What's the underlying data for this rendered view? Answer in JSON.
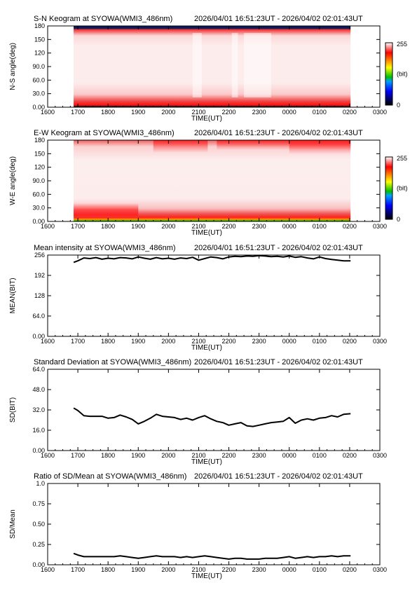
{
  "chart_data": [
    {
      "type": "heatmap",
      "title": "S-N Keogram at SYOWA(WMI3_486nm)",
      "time_range": "2026/04/01 16:51:23UT - 2026/04/02 02:01:43UT",
      "xlabel": "TIME(UT)",
      "ylabel": "N-S angle(deg)",
      "x_ticks": [
        "1600",
        "1700",
        "1800",
        "1900",
        "2000",
        "2100",
        "2200",
        "2300",
        "0000",
        "0100",
        "0200",
        "0300"
      ],
      "y_ticks": [
        "0.00",
        "30.0",
        "60.0",
        "90.0",
        "120",
        "150",
        "180"
      ],
      "ylim": [
        0,
        180
      ],
      "data_start_hour": 16.86,
      "data_end_hour": 26.03,
      "colorbar": {
        "max_label": "255",
        "unit_label": "(bit)",
        "min_label": "0"
      }
    },
    {
      "type": "heatmap",
      "title": "E-W Keogram at SYOWA(WMI3_486nm)",
      "time_range": "2026/04/01 16:51:23UT - 2026/04/02 02:01:43UT",
      "xlabel": "TIME(UT)",
      "ylabel": "W-E angle(deg)",
      "x_ticks": [
        "1600",
        "1700",
        "1800",
        "1900",
        "2000",
        "2100",
        "2200",
        "2300",
        "0000",
        "0100",
        "0200",
        "0300"
      ],
      "y_ticks": [
        "0.00",
        "30.0",
        "60.0",
        "90.0",
        "120",
        "150",
        "180"
      ],
      "ylim": [
        0,
        180
      ],
      "data_start_hour": 16.86,
      "data_end_hour": 26.03,
      "colorbar": {
        "max_label": "255",
        "unit_label": "(bit)",
        "min_label": "0"
      }
    },
    {
      "type": "line",
      "title": "Mean intensity at SYOWA(WMI3_486nm)",
      "time_range": "2026/04/01 16:51:23UT - 2026/04/02 02:01:43UT",
      "xlabel": "TIME(UT)",
      "ylabel": "MEAN(BIT)",
      "x_ticks": [
        "1600",
        "1700",
        "1800",
        "1900",
        "2000",
        "2100",
        "2200",
        "2300",
        "0000",
        "0100",
        "0200",
        "0300"
      ],
      "y_ticks": [
        "0.00",
        "64.0",
        "128",
        "192",
        "256"
      ],
      "xlim": [
        16,
        27
      ],
      "ylim": [
        0,
        256
      ],
      "x": [
        16.86,
        17.0,
        17.2,
        17.4,
        17.6,
        17.8,
        18.0,
        18.2,
        18.4,
        18.6,
        18.8,
        19.0,
        19.2,
        19.4,
        19.6,
        19.8,
        20.0,
        20.2,
        20.4,
        20.6,
        20.8,
        21.0,
        21.2,
        21.4,
        21.6,
        21.8,
        22.0,
        22.2,
        22.4,
        22.6,
        22.8,
        23.0,
        23.2,
        23.4,
        23.6,
        23.8,
        24.0,
        24.2,
        24.4,
        24.6,
        24.8,
        25.0,
        25.2,
        25.4,
        25.6,
        25.8,
        26.03
      ],
      "y": [
        233,
        238,
        247,
        245,
        248,
        243,
        246,
        244,
        248,
        247,
        244,
        250,
        246,
        243,
        248,
        244,
        246,
        243,
        247,
        245,
        249,
        240,
        245,
        250,
        248,
        244,
        250,
        252,
        251,
        253,
        252,
        254,
        253,
        251,
        252,
        250,
        253,
        249,
        251,
        247,
        244,
        250,
        245,
        242,
        240,
        238,
        238
      ]
    },
    {
      "type": "line",
      "title": "Standard Deviation at SYOWA(WMI3_486nm)",
      "time_range": "2026/04/01 16:51:23UT - 2026/04/02 02:01:43UT",
      "xlabel": "TIME(UT)",
      "ylabel": "SD(BIT)",
      "x_ticks": [
        "1600",
        "1700",
        "1800",
        "1900",
        "2000",
        "2100",
        "2200",
        "2300",
        "0000",
        "0100",
        "0200",
        "0300"
      ],
      "y_ticks": [
        "0.00",
        "16.0",
        "32.0",
        "48.0",
        "64.0"
      ],
      "xlim": [
        16,
        27
      ],
      "ylim": [
        0,
        64
      ],
      "x": [
        16.86,
        17.0,
        17.2,
        17.4,
        17.6,
        17.8,
        18.0,
        18.2,
        18.4,
        18.6,
        18.8,
        19.0,
        19.2,
        19.4,
        19.6,
        19.8,
        20.0,
        20.2,
        20.4,
        20.6,
        20.8,
        21.0,
        21.2,
        21.4,
        21.6,
        21.8,
        22.0,
        22.2,
        22.4,
        22.6,
        22.8,
        23.0,
        23.2,
        23.4,
        23.6,
        23.8,
        24.0,
        24.2,
        24.4,
        24.6,
        24.8,
        25.0,
        25.2,
        25.4,
        25.6,
        25.8,
        26.03
      ],
      "y": [
        33.5,
        31.5,
        27.5,
        27,
        27,
        27,
        25.5,
        26,
        28,
        26.5,
        24.5,
        21,
        23,
        25.5,
        28.5,
        27,
        26.5,
        26,
        24.5,
        25.5,
        24,
        26,
        27.5,
        25,
        23,
        22,
        20,
        21,
        22,
        19.5,
        19,
        20,
        21,
        22,
        22.5,
        23,
        26,
        21.5,
        24,
        25,
        24,
        25.5,
        26,
        27.5,
        26.5,
        28.5,
        29
      ]
    },
    {
      "type": "line",
      "title": "Ratio of SD/Mean at SYOWA(WMI3_486nm)",
      "time_range": "2026/04/01 16:51:23UT - 2026/04/02 02:01:43UT",
      "xlabel": "TIME(UT)",
      "ylabel": "SD/Mean",
      "x_ticks": [
        "1600",
        "1700",
        "1800",
        "1900",
        "2000",
        "2100",
        "2200",
        "2300",
        "0000",
        "0100",
        "0200",
        "0300"
      ],
      "y_ticks": [
        "0.00",
        "0.25",
        "0.50",
        "0.75",
        "1.0"
      ],
      "xlim": [
        16,
        27
      ],
      "ylim": [
        0,
        1.0
      ],
      "x": [
        16.86,
        17.0,
        17.2,
        17.4,
        17.6,
        17.8,
        18.0,
        18.2,
        18.4,
        18.6,
        18.8,
        19.0,
        19.2,
        19.4,
        19.6,
        19.8,
        20.0,
        20.2,
        20.4,
        20.6,
        20.8,
        21.0,
        21.2,
        21.4,
        21.6,
        21.8,
        22.0,
        22.2,
        22.4,
        22.6,
        22.8,
        23.0,
        23.2,
        23.4,
        23.6,
        23.8,
        24.0,
        24.2,
        24.4,
        24.6,
        24.8,
        25.0,
        25.2,
        25.4,
        25.6,
        25.8,
        26.03
      ],
      "y": [
        0.14,
        0.12,
        0.1,
        0.1,
        0.1,
        0.1,
        0.1,
        0.1,
        0.11,
        0.1,
        0.09,
        0.08,
        0.09,
        0.1,
        0.11,
        0.1,
        0.1,
        0.1,
        0.09,
        0.1,
        0.09,
        0.1,
        0.11,
        0.1,
        0.09,
        0.08,
        0.07,
        0.08,
        0.08,
        0.07,
        0.07,
        0.07,
        0.08,
        0.08,
        0.08,
        0.09,
        0.1,
        0.08,
        0.09,
        0.1,
        0.09,
        0.1,
        0.1,
        0.11,
        0.1,
        0.11,
        0.11
      ]
    }
  ]
}
